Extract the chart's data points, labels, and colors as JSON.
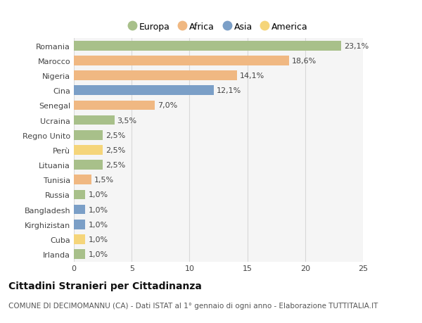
{
  "countries": [
    "Romania",
    "Marocco",
    "Nigeria",
    "Cina",
    "Senegal",
    "Ucraina",
    "Regno Unito",
    "Perù",
    "Lituania",
    "Tunisia",
    "Russia",
    "Bangladesh",
    "Kirghizistan",
    "Cuba",
    "Irlanda"
  ],
  "values": [
    23.1,
    18.6,
    14.1,
    12.1,
    7.0,
    3.5,
    2.5,
    2.5,
    2.5,
    1.5,
    1.0,
    1.0,
    1.0,
    1.0,
    1.0
  ],
  "labels": [
    "23,1%",
    "18,6%",
    "14,1%",
    "12,1%",
    "7,0%",
    "3,5%",
    "2,5%",
    "2,5%",
    "2,5%",
    "1,5%",
    "1,0%",
    "1,0%",
    "1,0%",
    "1,0%",
    "1,0%"
  ],
  "continents": [
    "Europa",
    "Africa",
    "Africa",
    "Asia",
    "Africa",
    "Europa",
    "Europa",
    "America",
    "Europa",
    "Africa",
    "Europa",
    "Asia",
    "Asia",
    "America",
    "Europa"
  ],
  "continent_colors": {
    "Europa": "#a8c08a",
    "Africa": "#f0b882",
    "Asia": "#7b9fc7",
    "America": "#f5d57a"
  },
  "legend_items": [
    "Europa",
    "Africa",
    "Asia",
    "America"
  ],
  "title": "Cittadini Stranieri per Cittadinanza",
  "subtitle": "COMUNE DI DECIMOMANNU (CA) - Dati ISTAT al 1° gennaio di ogni anno - Elaborazione TUTTITALIA.IT",
  "xlim": [
    0,
    25
  ],
  "xticks": [
    0,
    5,
    10,
    15,
    20,
    25
  ],
  "bg_color": "#ffffff",
  "plot_bg_color": "#f5f5f5",
  "grid_color": "#d8d8d8",
  "bar_height": 0.65,
  "title_fontsize": 10,
  "subtitle_fontsize": 7.5,
  "label_fontsize": 8,
  "tick_fontsize": 8,
  "legend_fontsize": 9
}
